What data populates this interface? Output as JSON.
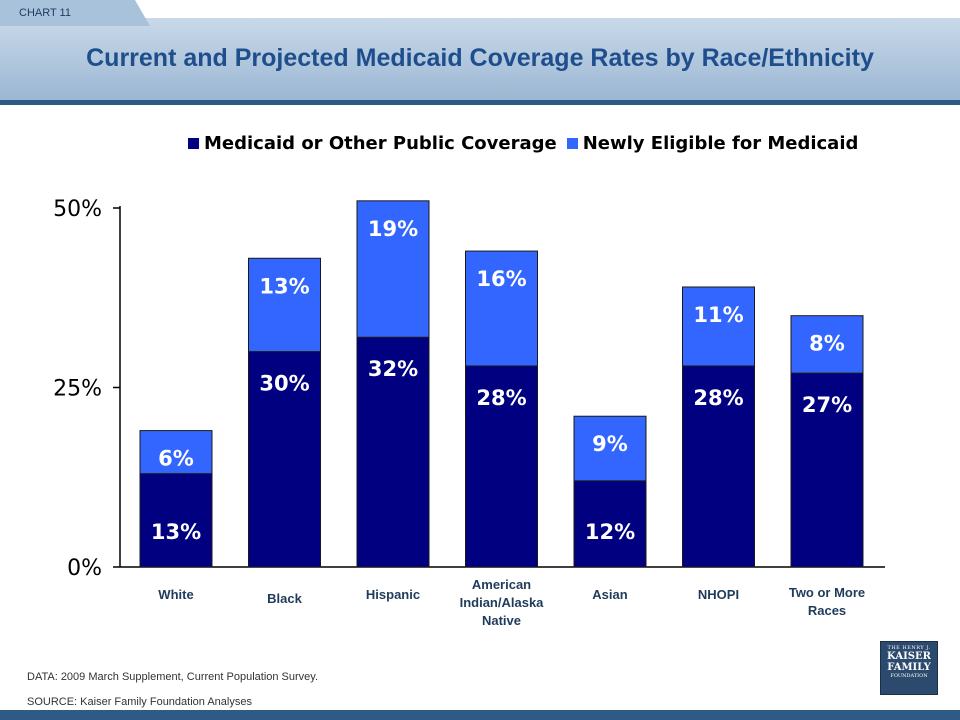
{
  "header": {
    "chart_label": "CHART 11",
    "title": "Current and Projected Medicaid Coverage Rates by Race/Ethnicity"
  },
  "colors": {
    "series1": "#000080",
    "series2": "#3366ff",
    "banner": "#9bb7d3",
    "title": "#1f4e8c"
  },
  "chart_data": {
    "type": "bar",
    "stacked": true,
    "categories": [
      "White",
      "Black",
      "Hispanic",
      "American Indian/Alaska Native",
      "Asian",
      "NHOPI",
      "Two or More Races"
    ],
    "category_labels": [
      [
        "White"
      ],
      [
        "Black"
      ],
      [
        "Hispanic"
      ],
      [
        "American",
        "Indian/Alaska",
        "Native"
      ],
      [
        "Asian"
      ],
      [
        "NHOPI"
      ],
      [
        "Two or More",
        "Races"
      ]
    ],
    "series": [
      {
        "name": "Medicaid or Other Public Coverage",
        "values": [
          13,
          30,
          32,
          28,
          12,
          28,
          27
        ],
        "labels": [
          "13%",
          "30%",
          "32%",
          "28%",
          "12%",
          "28%",
          "27%"
        ]
      },
      {
        "name": "Newly Eligible for Medicaid",
        "values": [
          6,
          13,
          19,
          16,
          9,
          11,
          8
        ],
        "labels": [
          "6%",
          "13%",
          "19%",
          "16%",
          "9%",
          "11%",
          "8%"
        ]
      }
    ],
    "yticks": [
      "0%",
      "25%",
      "50%"
    ],
    "ylim": [
      0,
      50
    ],
    "legend": "top",
    "grid": false
  },
  "notes": {
    "data": "DATA:  2009 March Supplement, Current  Population Survey.",
    "source": "SOURCE:   Kaiser Family Foundation Analyses"
  },
  "logo": {
    "line1": "THE HENRY J.",
    "line2": "KAISER",
    "line3": "FAMILY",
    "line4": "FOUNDATION"
  }
}
